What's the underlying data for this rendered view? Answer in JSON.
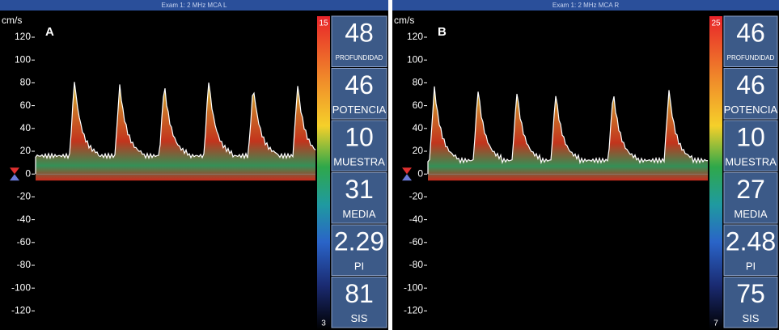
{
  "panels": [
    {
      "header": "Exam 1: 2 MHz  MCA L",
      "unit": "cm/s",
      "label": "A",
      "axis_labels": [
        120,
        100,
        80,
        60,
        40,
        20,
        0,
        -20,
        -40,
        -60,
        -80,
        -100,
        -120
      ],
      "scale_top": 15,
      "scale_bottom": 3,
      "readouts": [
        {
          "value": 48,
          "label": "PROFUNDIDAD"
        },
        {
          "value": 46,
          "label": "POTENCIA"
        },
        {
          "value": 10,
          "label": "MUESTRA"
        },
        {
          "value": 31,
          "label": "MEDIA"
        },
        {
          "value": 2.29,
          "label": "PI"
        },
        {
          "value": 81,
          "label": "SIS"
        }
      ]
    },
    {
      "header": "Exam 1: 2 MHz  MCA R",
      "unit": "cm/s",
      "label": "B",
      "axis_labels": [
        120,
        100,
        80,
        60,
        40,
        20,
        0,
        -20,
        -40,
        -60,
        -80,
        -100,
        -120
      ],
      "scale_top": 25,
      "scale_bottom": 7,
      "readouts": [
        {
          "value": 46,
          "label": "PROFUNDIDAD"
        },
        {
          "value": 46,
          "label": "POTENCIA"
        },
        {
          "value": 10,
          "label": "MUESTRA"
        },
        {
          "value": 27,
          "label": "MEDIA"
        },
        {
          "value": 2.48,
          "label": "PI"
        },
        {
          "value": 75,
          "label": "SIS"
        }
      ]
    }
  ]
}
